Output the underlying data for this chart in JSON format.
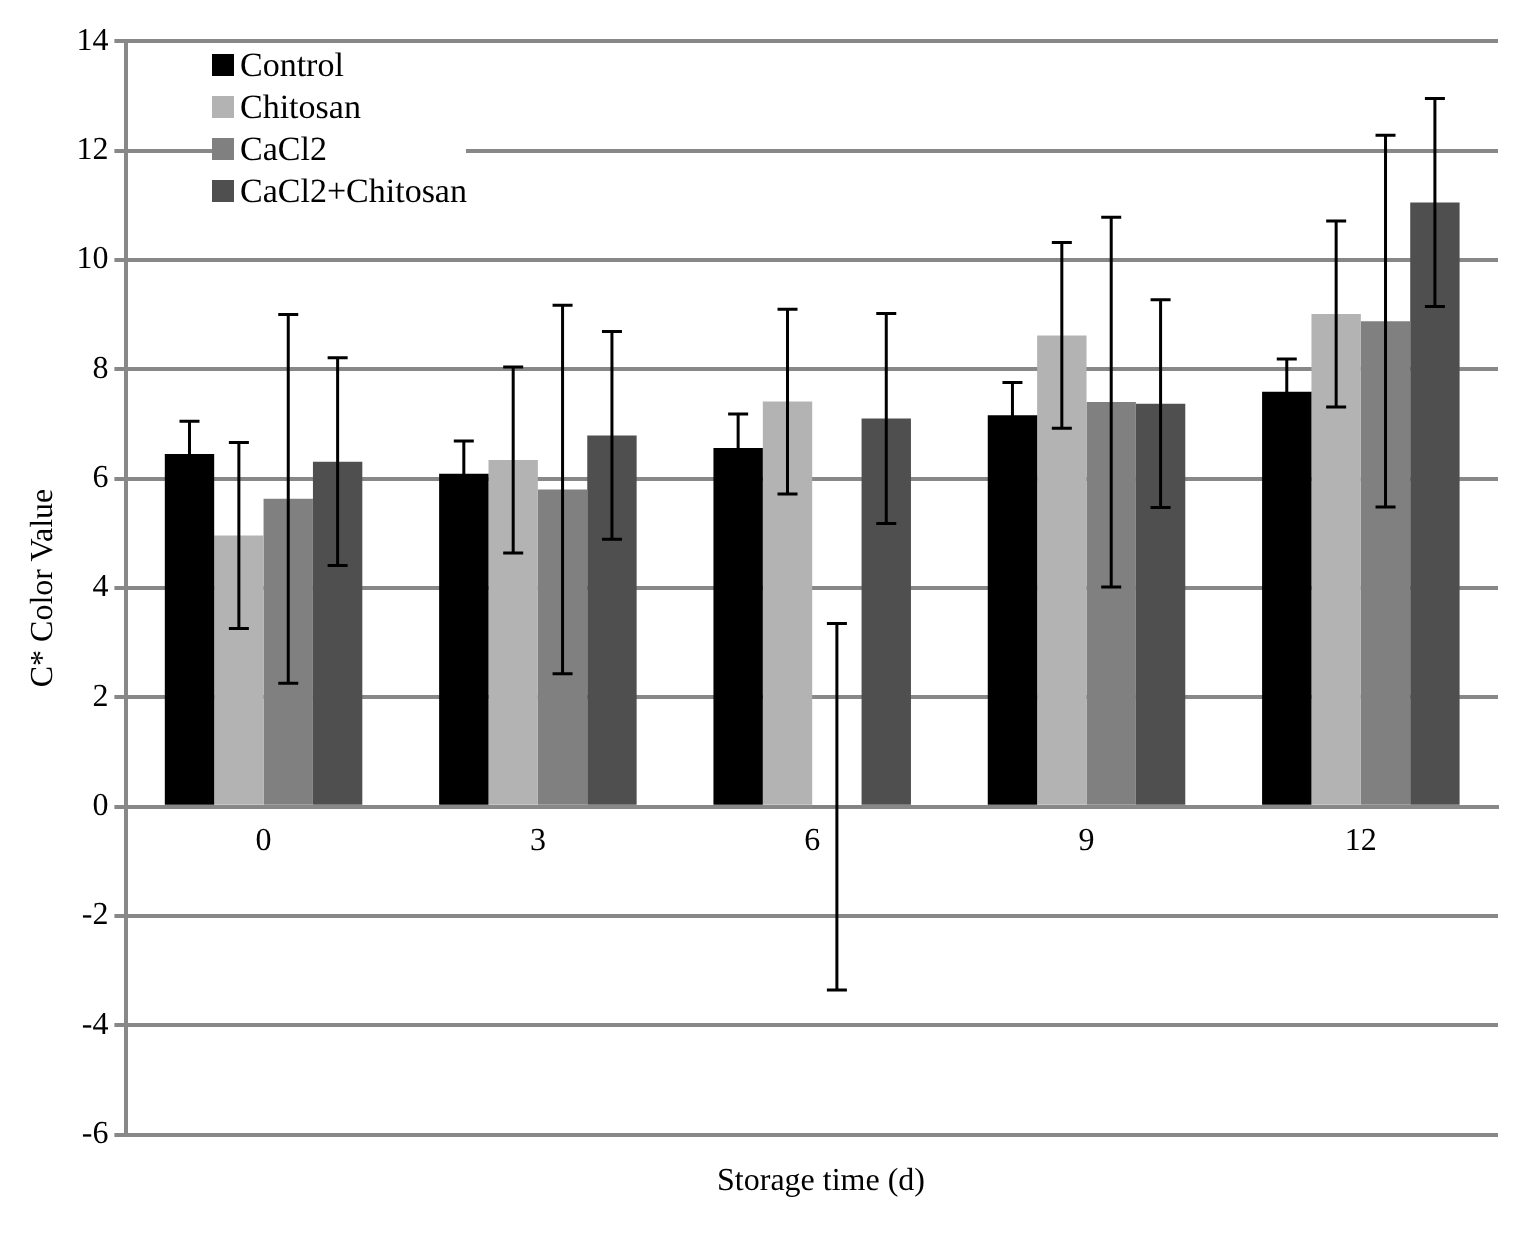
{
  "chart_data": {
    "type": "bar",
    "xlabel": "Storage time (d)",
    "ylabel": "C* Color Value",
    "categories": [
      "0",
      "3",
      "6",
      "9",
      "12"
    ],
    "series": [
      {
        "name": "Control",
        "color": "#000000",
        "values": [
          6.45,
          6.09,
          6.56,
          7.16,
          7.59
        ],
        "errors": [
          0.6,
          0.6,
          0.62,
          0.6,
          0.6
        ]
      },
      {
        "name": "Chitosan",
        "color": "#b3b3b3",
        "values": [
          4.96,
          6.34,
          7.41,
          8.62,
          9.01
        ],
        "errors": [
          1.7,
          1.7,
          1.69,
          1.7,
          1.7
        ]
      },
      {
        "name": "CaCl2",
        "color": "#808080",
        "values": [
          5.63,
          5.8,
          0,
          7.4,
          8.88
        ],
        "errors": [
          3.37,
          3.37,
          3.35,
          3.38,
          3.4
        ]
      },
      {
        "name": "CaCl2+Chitosan",
        "color": "#4f4f4f",
        "values": [
          6.31,
          6.79,
          7.1,
          7.37,
          11.05
        ],
        "errors": [
          1.9,
          1.9,
          1.92,
          1.9,
          1.9
        ]
      }
    ],
    "ylim": [
      -6,
      14
    ],
    "yticks": [
      -6,
      -4,
      -2,
      0,
      2,
      4,
      6,
      8,
      10,
      12,
      14
    ],
    "grid": "y",
    "legend": "top left"
  }
}
